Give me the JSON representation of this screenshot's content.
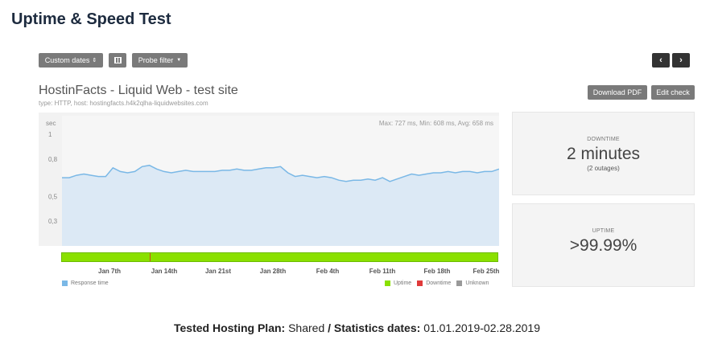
{
  "page": {
    "heading": "Uptime & Speed Test"
  },
  "toolbar": {
    "custom_dates_label": "Custom dates",
    "probe_filter_label": "Probe filter",
    "download_pdf_label": "Download PDF",
    "edit_check_label": "Edit check"
  },
  "check": {
    "title": "HostinFacts - Liquid Web - test site",
    "subtitle": "type: HTTP, host: hostingfacts.h4k2qlha-liquidwebsites.com"
  },
  "chart_data": {
    "type": "area",
    "ylabel": "sec",
    "ylim": [
      0.1,
      1.15
    ],
    "yticks": [
      {
        "value": 1,
        "label": "1"
      },
      {
        "value": 0.8,
        "label": "0,8"
      },
      {
        "value": 0.5,
        "label": "0,5"
      },
      {
        "value": 0.3,
        "label": "0,3"
      }
    ],
    "stats": "Max: 727 ms, Min: 608 ms, Avg: 658 ms",
    "x_ticks": [
      "Jan 7th",
      "Jan 14th",
      "Jan 21st",
      "Jan 28th",
      "Feb 4th",
      "Feb 11th",
      "Feb 18th",
      "Feb 25th"
    ],
    "series": [
      {
        "name": "Response time",
        "color": "#7ab8e6",
        "values": [
          0.65,
          0.65,
          0.67,
          0.68,
          0.67,
          0.66,
          0.66,
          0.73,
          0.7,
          0.69,
          0.7,
          0.74,
          0.75,
          0.72,
          0.7,
          0.69,
          0.7,
          0.71,
          0.7,
          0.7,
          0.7,
          0.7,
          0.71,
          0.71,
          0.72,
          0.71,
          0.71,
          0.72,
          0.73,
          0.73,
          0.74,
          0.69,
          0.66,
          0.67,
          0.66,
          0.65,
          0.66,
          0.65,
          0.63,
          0.62,
          0.63,
          0.63,
          0.64,
          0.63,
          0.65,
          0.62,
          0.64,
          0.66,
          0.68,
          0.67,
          0.68,
          0.69,
          0.69,
          0.7,
          0.69,
          0.7,
          0.7,
          0.69,
          0.7,
          0.7,
          0.72
        ]
      }
    ]
  },
  "downtime": {
    "label": "DOWNTIME",
    "value": "2 minutes",
    "note": "(2 outages)"
  },
  "uptime": {
    "label": "UPTIME",
    "value": ">99.99%"
  },
  "legend": {
    "response_time": "Response time",
    "uptime": "Uptime",
    "downtime": "Downtime",
    "unknown": "Unknown",
    "colors": {
      "response": "#7ab8e6",
      "uptime": "#8ae000",
      "downtime": "#e03a3a",
      "unknown": "#999999"
    }
  },
  "footer": {
    "plan_label": "Tested Hosting Plan:",
    "plan_value": "Shared",
    "separator": "/",
    "dates_label": "Statistics dates:",
    "dates_value": "01.01.2019-02.28.2019"
  }
}
